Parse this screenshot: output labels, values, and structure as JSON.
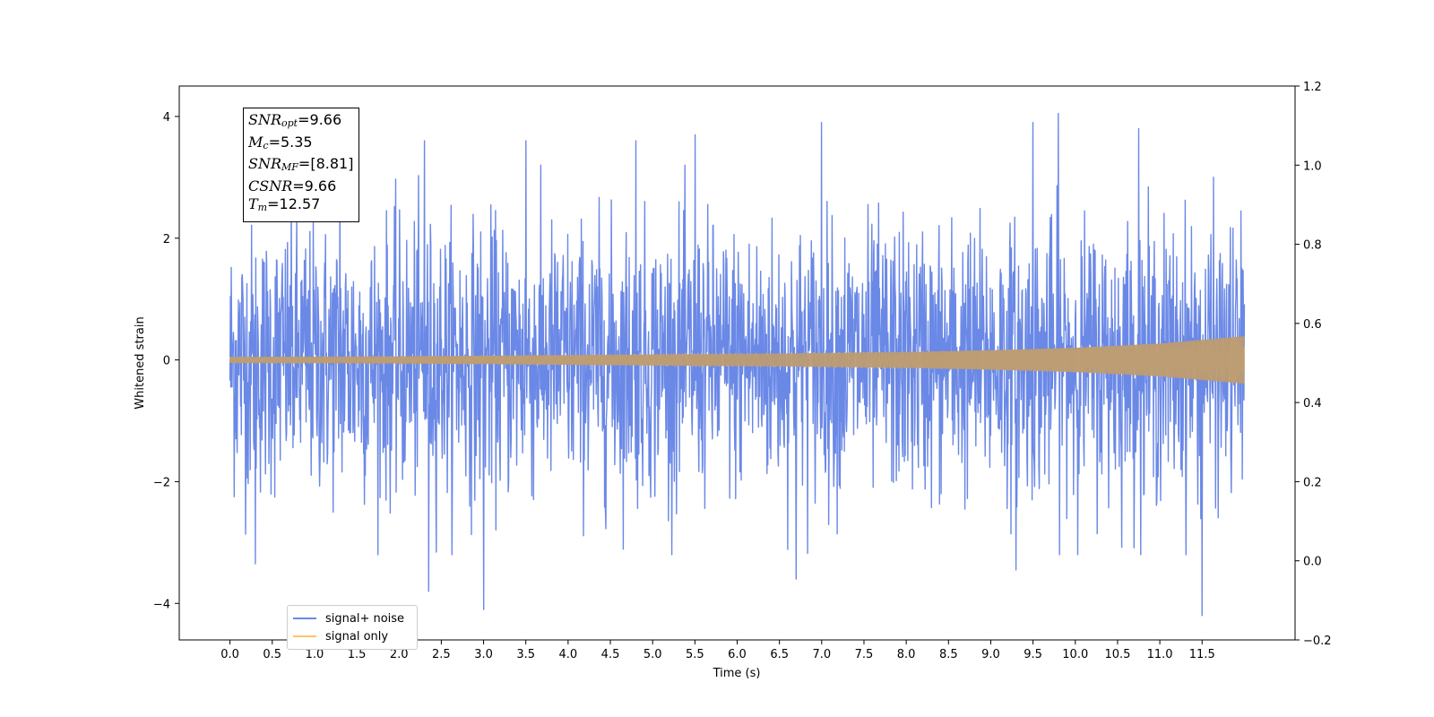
{
  "chart_data": {
    "type": "line",
    "xlabel": "Time (s)",
    "ylabel": "Whitened strain",
    "xlim": [
      -0.6,
      12.6
    ],
    "ylim": [
      -4.6,
      4.5
    ],
    "y2lim": [
      -0.2,
      1.2
    ],
    "x_ticks": [
      "0.0",
      "0.5",
      "1.0",
      "1.5",
      "2.0",
      "2.5",
      "3.0",
      "3.5",
      "4.0",
      "4.5",
      "5.0",
      "5.5",
      "6.0",
      "6.5",
      "7.0",
      "7.5",
      "8.0",
      "8.5",
      "9.0",
      "9.5",
      "10.0",
      "10.5",
      "11.0",
      "11.5"
    ],
    "y_ticks": [
      "−4",
      "−2",
      "0",
      "2",
      "4"
    ],
    "y2_ticks": [
      "−0.2",
      "0.0",
      "0.2",
      "0.4",
      "0.6",
      "0.8",
      "1.0",
      "1.2"
    ],
    "grid": false,
    "legend_position": "lower-left",
    "series": [
      {
        "name": "signal+ noise",
        "color": "#6a88e6",
        "x_range": [
          0.0,
          12.0
        ],
        "envelope": {
          "x": [
            0.0,
            3.0,
            6.0,
            9.0,
            12.0
          ],
          "typical_abs": [
            2.4,
            2.4,
            2.4,
            2.4,
            2.4
          ]
        },
        "peaks": [
          {
            "x": 1.3,
            "y": 3.2
          },
          {
            "x": 2.3,
            "y": 3.6
          },
          {
            "x": 3.5,
            "y": 3.6
          },
          {
            "x": 4.8,
            "y": 3.6
          },
          {
            "x": 5.5,
            "y": 3.7
          },
          {
            "x": 7.0,
            "y": 3.9
          },
          {
            "x": 9.5,
            "y": 3.9
          },
          {
            "x": 9.8,
            "y": 4.05
          },
          {
            "x": 10.75,
            "y": 3.8
          },
          {
            "x": 3.0,
            "y": -4.1
          },
          {
            "x": 2.35,
            "y": -3.8
          },
          {
            "x": 11.5,
            "y": -4.2
          },
          {
            "x": 6.7,
            "y": -3.6
          },
          {
            "x": 9.3,
            "y": -3.45
          },
          {
            "x": 0.3,
            "y": -3.35
          }
        ]
      },
      {
        "name": "signal only",
        "color": "#ffc266",
        "x_range": [
          0.0,
          12.0
        ],
        "envelope": {
          "x": [
            0.0,
            2.0,
            4.0,
            6.0,
            8.0,
            9.0,
            10.0,
            11.0,
            12.0
          ],
          "amplitude": [
            0.05,
            0.06,
            0.08,
            0.1,
            0.13,
            0.16,
            0.2,
            0.27,
            0.39
          ]
        }
      }
    ],
    "annotation": {
      "lines": [
        {
          "sym": "SNR",
          "sub": "opt",
          "value": "=9.66"
        },
        {
          "sym": "M",
          "sub": "c",
          "value": "=5.35"
        },
        {
          "sym": "SNR",
          "sub": "MF",
          "value": "=[8.81]"
        },
        {
          "sym": "CSNR",
          "sub": "",
          "value": "=9.66"
        },
        {
          "sym": "T",
          "sub": "m",
          "value": "=12.57"
        }
      ]
    }
  }
}
